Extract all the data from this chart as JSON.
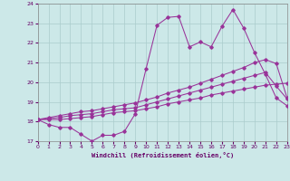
{
  "xlabel": "Windchill (Refroidissement éolien,°C)",
  "bg_color": "#cce8e8",
  "grid_color": "#aacccc",
  "line_color": "#993399",
  "xlim": [
    0,
    23
  ],
  "ylim": [
    17,
    24
  ],
  "yticks": [
    17,
    18,
    19,
    20,
    21,
    22,
    23,
    24
  ],
  "xticks": [
    0,
    1,
    2,
    3,
    4,
    5,
    6,
    7,
    8,
    9,
    10,
    11,
    12,
    13,
    14,
    15,
    16,
    17,
    18,
    19,
    20,
    21,
    22,
    23
  ],
  "series1_x": [
    0,
    1,
    2,
    3,
    4,
    5,
    6,
    7,
    8,
    9,
    10,
    11,
    12,
    13,
    14,
    15,
    16,
    17,
    18,
    19,
    20,
    21,
    22,
    23
  ],
  "series1_y": [
    18.1,
    17.85,
    17.7,
    17.7,
    17.35,
    17.0,
    17.3,
    17.3,
    17.5,
    18.4,
    20.7,
    22.9,
    23.3,
    23.35,
    21.8,
    22.05,
    21.8,
    22.85,
    23.7,
    22.75,
    21.5,
    20.4,
    19.2,
    18.8
  ],
  "series2_x": [
    0,
    1,
    2,
    3,
    4,
    5,
    6,
    7,
    8,
    9,
    10,
    11,
    12,
    13,
    14,
    15,
    16,
    17,
    18,
    19,
    20,
    21,
    22,
    23
  ],
  "series2_y": [
    18.1,
    18.2,
    18.3,
    18.4,
    18.5,
    18.55,
    18.65,
    18.75,
    18.85,
    18.95,
    19.1,
    19.25,
    19.45,
    19.6,
    19.75,
    19.95,
    20.15,
    20.35,
    20.55,
    20.75,
    21.0,
    21.15,
    20.95,
    19.2
  ],
  "series3_x": [
    0,
    1,
    2,
    3,
    4,
    5,
    6,
    7,
    8,
    9,
    10,
    11,
    12,
    13,
    14,
    15,
    16,
    17,
    18,
    19,
    20,
    21,
    22,
    23
  ],
  "series3_y": [
    18.1,
    18.15,
    18.2,
    18.3,
    18.35,
    18.4,
    18.5,
    18.6,
    18.65,
    18.7,
    18.85,
    19.0,
    19.15,
    19.3,
    19.45,
    19.6,
    19.75,
    19.9,
    20.05,
    20.2,
    20.35,
    20.5,
    19.8,
    19.15
  ],
  "series4_x": [
    0,
    1,
    2,
    3,
    4,
    5,
    6,
    7,
    8,
    9,
    10,
    11,
    12,
    13,
    14,
    15,
    16,
    17,
    18,
    19,
    20,
    21,
    22,
    23
  ],
  "series4_y": [
    18.1,
    18.1,
    18.1,
    18.15,
    18.2,
    18.25,
    18.35,
    18.45,
    18.5,
    18.55,
    18.65,
    18.75,
    18.9,
    19.0,
    19.1,
    19.2,
    19.35,
    19.45,
    19.55,
    19.65,
    19.75,
    19.85,
    19.9,
    19.95
  ]
}
